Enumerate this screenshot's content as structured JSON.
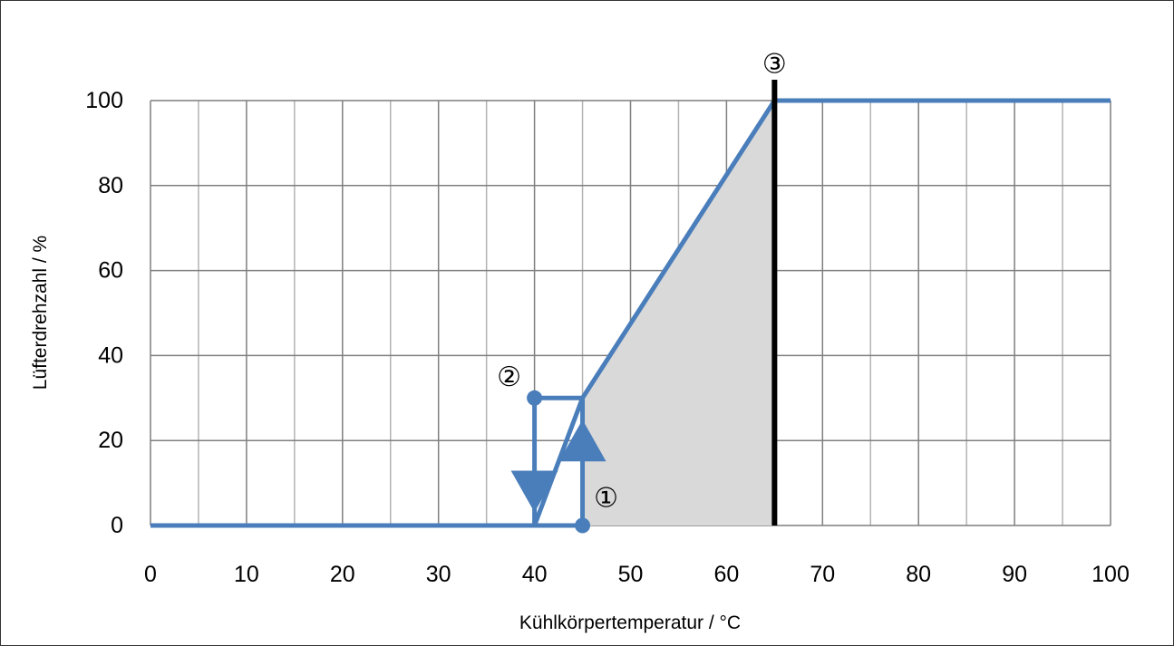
{
  "chart_data": {
    "type": "line",
    "title": "",
    "xlabel": "Kühlkörpertemperatur / °C",
    "ylabel": "Lüfterdrehzahl / %",
    "xlim": [
      0,
      100
    ],
    "ylim": [
      0,
      100
    ],
    "x_ticks": [
      "0",
      "10",
      "20",
      "30",
      "40",
      "50",
      "60",
      "70",
      "80",
      "90",
      "100"
    ],
    "y_ticks": [
      "0",
      "20",
      "40",
      "60",
      "80",
      "100"
    ],
    "grid": true,
    "series": [
      {
        "color": "#4a7ebb",
        "points": [
          [
            0,
            0
          ],
          [
            40,
            0
          ],
          [
            45,
            0
          ],
          [
            45,
            30
          ],
          [
            40,
            30
          ],
          [
            40,
            0
          ],
          [
            45,
            30
          ],
          [
            65,
            100
          ],
          [
            100,
            100
          ]
        ]
      }
    ],
    "shaded_region": {
      "color": "#d9d9d9",
      "polygon": [
        [
          45,
          0
        ],
        [
          45,
          30
        ],
        [
          65,
          100
        ],
        [
          65,
          0
        ]
      ]
    },
    "vertical_line": {
      "x": 65,
      "color": "#000000"
    },
    "direction_arrows": [
      {
        "x": 45,
        "y": 20,
        "direction": "up"
      },
      {
        "x": 40,
        "y": 8,
        "direction": "down"
      }
    ],
    "markers": [
      {
        "x": 45,
        "y": 0,
        "label": "①"
      },
      {
        "x": 40,
        "y": 30,
        "label": "②"
      },
      {
        "x": 65,
        "y": 100,
        "label": "③"
      }
    ]
  }
}
